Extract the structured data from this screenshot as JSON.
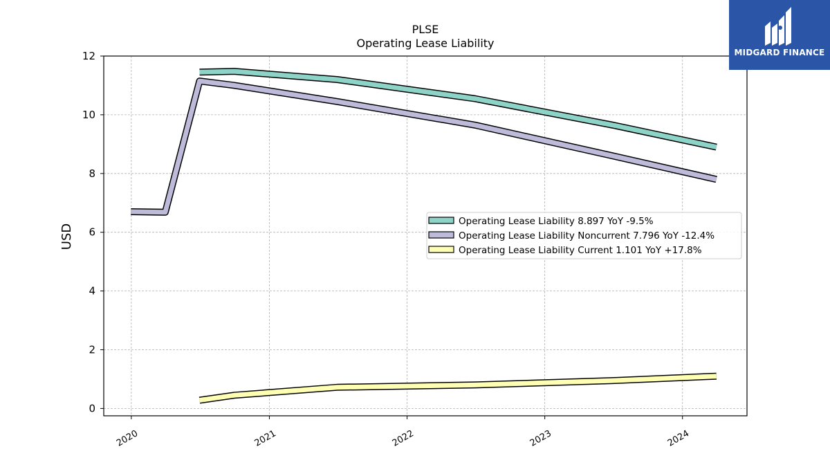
{
  "brand": {
    "name": "MIDGARD FINANCE",
    "logo_icon": "midgard-m-logo-icon",
    "color": "#2b56a8"
  },
  "chart_data": {
    "type": "line",
    "title": "PLSE",
    "subtitle": "Operating Lease Liability",
    "ylabel": "USD",
    "xlabel": "",
    "ylim": [
      -0.25,
      12
    ],
    "yticks": [
      0,
      2,
      4,
      6,
      8,
      10,
      12
    ],
    "xlim": [
      "2019-10-20",
      "2024-06-20"
    ],
    "xticks": [
      "2020",
      "2021",
      "2022",
      "2023",
      "2024"
    ],
    "grid": true,
    "legend_position": "center-right",
    "series": [
      {
        "name": "Operating Lease Liability",
        "legend": "Operating Lease Liability  8.897 YoY -9.5%",
        "color": "#8dd3c7",
        "points": [
          [
            "2020-06-30",
            11.45
          ],
          [
            "2020-09-30",
            11.48
          ],
          [
            "2021-06-30",
            11.2
          ],
          [
            "2022-06-30",
            10.55
          ],
          [
            "2023-06-30",
            9.65
          ],
          [
            "2024-03-31",
            8.9
          ]
        ]
      },
      {
        "name": "Operating Lease Liability Noncurrent",
        "legend": "Operating Lease Liability Noncurrent  7.796 YoY -12.4%",
        "color": "#bebada",
        "points": [
          [
            "2019-12-31",
            6.7
          ],
          [
            "2020-03-31",
            6.68
          ],
          [
            "2020-06-30",
            11.15
          ],
          [
            "2020-09-30",
            11.0
          ],
          [
            "2021-06-30",
            10.45
          ],
          [
            "2022-06-30",
            9.65
          ],
          [
            "2023-06-30",
            8.6
          ],
          [
            "2024-03-31",
            7.8
          ]
        ]
      },
      {
        "name": "Operating Lease Liability Current",
        "legend": "Operating Lease Liability Current  1.101 YoY +17.8%",
        "color": "#ffffb3",
        "points": [
          [
            "2020-06-30",
            0.28
          ],
          [
            "2020-09-30",
            0.45
          ],
          [
            "2021-06-30",
            0.72
          ],
          [
            "2022-06-30",
            0.8
          ],
          [
            "2023-06-30",
            0.95
          ],
          [
            "2024-03-31",
            1.1
          ]
        ]
      }
    ]
  }
}
